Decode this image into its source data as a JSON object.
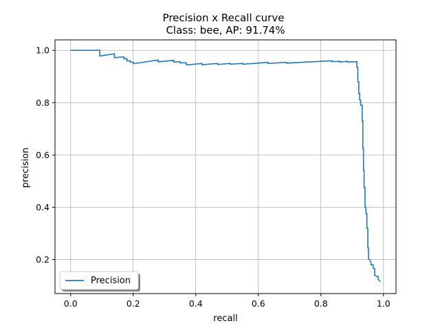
{
  "chart_data": {
    "type": "line",
    "title": "Precision x Recall curve",
    "subtitle": "Class: bee, AP: 91.74%",
    "xlabel": "recall",
    "ylabel": "precision",
    "xlim": [
      -0.05,
      1.04
    ],
    "ylim": [
      0.07,
      1.04
    ],
    "xticks": [
      0.0,
      0.2,
      0.4,
      0.6,
      0.8,
      1.0
    ],
    "xtick_labels": [
      "0.0",
      "0.2",
      "0.4",
      "0.6",
      "0.8",
      "1.0"
    ],
    "yticks": [
      0.2,
      0.4,
      0.6,
      0.8,
      1.0
    ],
    "ytick_labels": [
      "0.2",
      "0.4",
      "0.6",
      "0.8",
      "1.0"
    ],
    "grid": true,
    "legend_position": "lower-left",
    "series": [
      {
        "name": "Precision",
        "color": "#1f77b4",
        "points": [
          [
            0.0,
            1.0
          ],
          [
            0.093,
            1.0
          ],
          [
            0.093,
            0.978
          ],
          [
            0.14,
            0.987
          ],
          [
            0.14,
            0.972
          ],
          [
            0.17,
            0.975
          ],
          [
            0.17,
            0.968
          ],
          [
            0.18,
            0.968
          ],
          [
            0.18,
            0.96
          ],
          [
            0.19,
            0.96
          ],
          [
            0.19,
            0.955
          ],
          [
            0.2,
            0.955
          ],
          [
            0.2,
            0.949
          ],
          [
            0.28,
            0.963
          ],
          [
            0.28,
            0.956
          ],
          [
            0.33,
            0.962
          ],
          [
            0.33,
            0.955
          ],
          [
            0.35,
            0.957
          ],
          [
            0.35,
            0.952
          ],
          [
            0.37,
            0.952
          ],
          [
            0.37,
            0.944
          ],
          [
            0.42,
            0.95
          ],
          [
            0.42,
            0.945
          ],
          [
            0.47,
            0.95
          ],
          [
            0.47,
            0.946
          ],
          [
            0.51,
            0.95
          ],
          [
            0.51,
            0.947
          ],
          [
            0.55,
            0.95
          ],
          [
            0.55,
            0.947
          ],
          [
            0.63,
            0.954
          ],
          [
            0.63,
            0.95
          ],
          [
            0.69,
            0.954
          ],
          [
            0.69,
            0.951
          ],
          [
            0.75,
            0.955
          ],
          [
            0.835,
            0.96
          ],
          [
            0.835,
            0.957
          ],
          [
            0.86,
            0.958
          ],
          [
            0.86,
            0.955
          ],
          [
            0.885,
            0.958
          ],
          [
            0.885,
            0.955
          ],
          [
            0.915,
            0.957
          ],
          [
            0.915,
            0.935
          ],
          [
            0.918,
            0.935
          ],
          [
            0.918,
            0.88
          ],
          [
            0.921,
            0.88
          ],
          [
            0.921,
            0.835
          ],
          [
            0.924,
            0.835
          ],
          [
            0.924,
            0.81
          ],
          [
            0.927,
            0.81
          ],
          [
            0.927,
            0.79
          ],
          [
            0.932,
            0.79
          ],
          [
            0.932,
            0.73
          ],
          [
            0.934,
            0.73
          ],
          [
            0.934,
            0.625
          ],
          [
            0.936,
            0.625
          ],
          [
            0.936,
            0.54
          ],
          [
            0.938,
            0.54
          ],
          [
            0.938,
            0.475
          ],
          [
            0.941,
            0.475
          ],
          [
            0.941,
            0.4
          ],
          [
            0.944,
            0.4
          ],
          [
            0.944,
            0.375
          ],
          [
            0.947,
            0.375
          ],
          [
            0.947,
            0.32
          ],
          [
            0.95,
            0.32
          ],
          [
            0.95,
            0.245
          ],
          [
            0.952,
            0.245
          ],
          [
            0.952,
            0.205
          ],
          [
            0.96,
            0.19
          ],
          [
            0.96,
            0.18
          ],
          [
            0.967,
            0.18
          ],
          [
            0.967,
            0.167
          ],
          [
            0.972,
            0.165
          ],
          [
            0.972,
            0.14
          ],
          [
            0.98,
            0.135
          ],
          [
            0.983,
            0.135
          ],
          [
            0.983,
            0.125
          ],
          [
            0.99,
            0.115
          ]
        ]
      }
    ]
  }
}
